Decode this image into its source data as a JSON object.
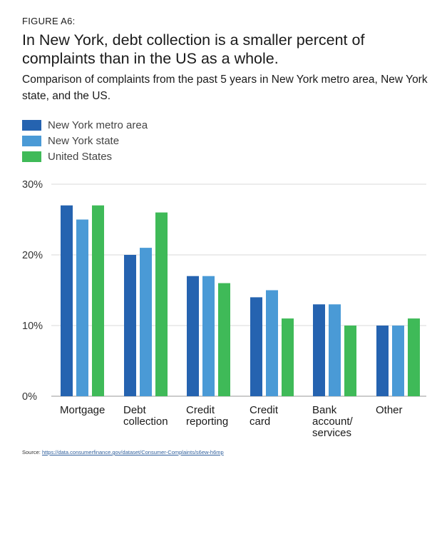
{
  "figure_label": "FIGURE A6:",
  "title": "In New York, debt collection is a smaller percent of complaints than in the US as a whole.",
  "subtitle": "Comparison of complaints from the past 5 years in New York metro area, New York state, and the US.",
  "source": {
    "label": "Source:",
    "url": "https://data.consumerfinance.gov/dataset/Consumer-Complaints/s6ew-h6mp"
  },
  "colors": {
    "metro": "#2563b0",
    "state": "#4a9ad6",
    "us": "#3fba58",
    "grid": "#d9d9d9",
    "axis": "#999999"
  },
  "chart_data": {
    "type": "bar",
    "categories": [
      [
        "Mortgage"
      ],
      [
        "Debt",
        "collection"
      ],
      [
        "Credit",
        "reporting"
      ],
      [
        "Credit",
        "card"
      ],
      [
        "Bank",
        "account/",
        "services"
      ],
      [
        "Other"
      ]
    ],
    "series": [
      {
        "name": "New York metro area",
        "values": [
          27,
          20,
          17,
          14,
          13,
          10
        ],
        "color": "#2563b0"
      },
      {
        "name": "New York state",
        "values": [
          25,
          21,
          17,
          15,
          13,
          10
        ],
        "color": "#4a9ad6"
      },
      {
        "name": "United States",
        "values": [
          27,
          26,
          16,
          11,
          10,
          11
        ],
        "color": "#3fba58"
      }
    ],
    "yticks": [
      "0%",
      "10%",
      "20%",
      "30%"
    ],
    "ylim": [
      0,
      30
    ],
    "grid": true,
    "legend_position": "top-left"
  }
}
